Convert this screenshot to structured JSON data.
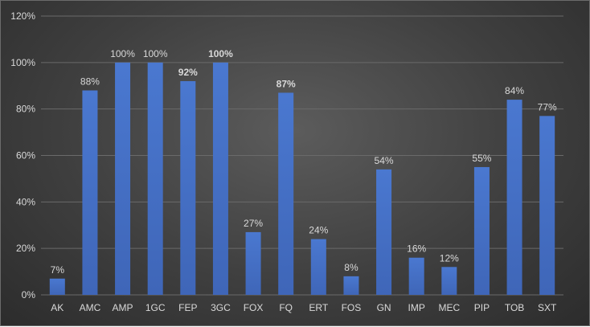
{
  "chart_data": {
    "type": "bar",
    "title": "",
    "xlabel": "",
    "ylabel": "",
    "categories": [
      "AK",
      "AMC",
      "AMP",
      "1GC",
      "FEP",
      "3GC",
      "FOX",
      "FQ",
      "ERT",
      "FOS",
      "GN",
      "IMP",
      "MEC",
      "PIP",
      "TOB",
      "SXT"
    ],
    "values": [
      7,
      88,
      100,
      100,
      92,
      100,
      27,
      87,
      24,
      8,
      54,
      16,
      12,
      55,
      84,
      77
    ],
    "data_labels": [
      "7%",
      "88%",
      "100%",
      "100%",
      "92%",
      "100%",
      "27%",
      "87%",
      "24%",
      "8%",
      "54%",
      "16%",
      "12%",
      "55%",
      "84%",
      "77%"
    ],
    "bold_labels": [
      false,
      false,
      false,
      false,
      true,
      true,
      false,
      true,
      false,
      false,
      false,
      false,
      false,
      false,
      false,
      false
    ],
    "ylim": [
      0,
      120
    ],
    "yticks": [
      0,
      20,
      40,
      60,
      80,
      100,
      120
    ],
    "ytick_labels": [
      "0%",
      "20%",
      "40%",
      "60%",
      "80%",
      "100%",
      "120%"
    ],
    "grid": true,
    "legend": "none",
    "bar_color": "#4472C4",
    "background_color": "#3f3f3f",
    "text_color": "#d9d9d9"
  }
}
